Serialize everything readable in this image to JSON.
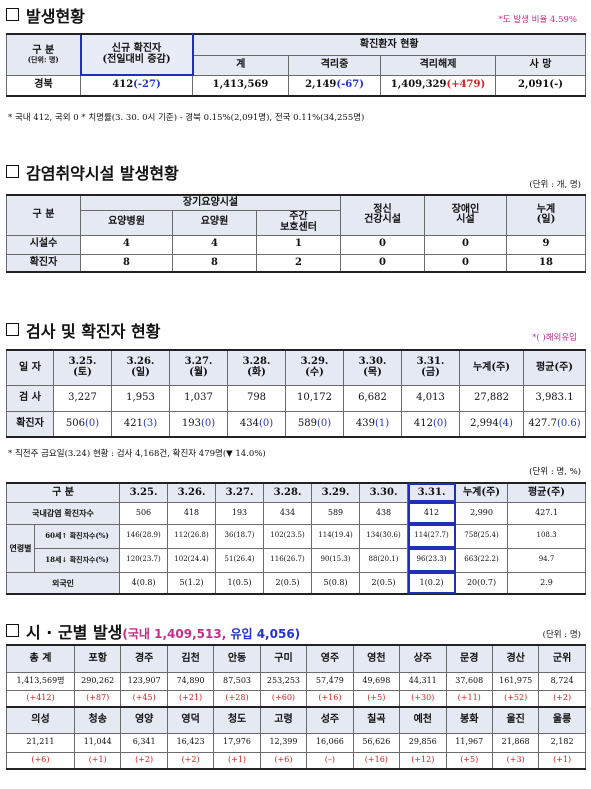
{
  "s1": {
    "title": "발생현황",
    "rate_note": "*도 발생 비율 4.59%",
    "h_gubun": "구 분",
    "h_unit": "(단위: 명)",
    "h_new1": "신규 확진자",
    "h_new2": "(전일대비 증감)",
    "h_group": "확진환자 현황",
    "h_cols": [
      "계",
      "격리중",
      "격리해제",
      "사 망"
    ],
    "row_label": "경북",
    "new_val": "412",
    "new_diff": "(-27)",
    "total": "1,413,569",
    "isolating": "2,149",
    "isolating_diff": "(-67)",
    "released": "1,409,329",
    "released_diff": "(+479)",
    "deaths": "2,091",
    "deaths_diff": "(-)",
    "footnote": "* 국내 412, 국외 0   * 치명률(3. 30. 0시 기준) - 경북 0.15%(2,091명), 전국 0.11%(34,255명)"
  },
  "s2": {
    "title": "감염취약시설 발생현황",
    "unit": "(단위 : 개, 명)",
    "h_gubun": "구 분",
    "h_group": "장기요양시설",
    "h_cols": [
      "요양병원",
      "요양원"
    ],
    "h_daycare1": "주간",
    "h_daycare2": "보호센터",
    "h_mental1": "정신",
    "h_mental2": "건강시설",
    "h_disabled1": "장애인",
    "h_disabled2": "시설",
    "h_cum1": "누계",
    "h_cum2": "(일)",
    "rows": [
      {
        "label": "시설수",
        "v": [
          "4",
          "4",
          "1",
          "0",
          "0",
          "9"
        ]
      },
      {
        "label": "확진자",
        "v": [
          "8",
          "8",
          "2",
          "0",
          "0",
          "18"
        ]
      }
    ]
  },
  "s3": {
    "title": "검사 및 확진자 현황",
    "overseas_note": "*(  )해외유입",
    "h_date": "일 자",
    "dates": [
      {
        "d": "3.25.",
        "w": "(토)"
      },
      {
        "d": "3.26.",
        "w": "(일)"
      },
      {
        "d": "3.27.",
        "w": "(월)"
      },
      {
        "d": "3.28.",
        "w": "(화)"
      },
      {
        "d": "3.29.",
        "w": "(수)"
      },
      {
        "d": "3.30.",
        "w": "(목)"
      },
      {
        "d": "3.31.",
        "w": "(금)"
      }
    ],
    "h_cum": "누계(주)",
    "h_avg": "평균(주)",
    "test_label": "검 사",
    "tests": [
      "3,227",
      "1,953",
      "1,037",
      "798",
      "10,172",
      "6,682",
      "4,013",
      "27,882",
      "3,983.1"
    ],
    "case_label": "확진자",
    "cases": [
      {
        "v": "506",
        "o": "(0)"
      },
      {
        "v": "421",
        "o": "(3)"
      },
      {
        "v": "193",
        "o": "(0)"
      },
      {
        "v": "434",
        "o": "(0)"
      },
      {
        "v": "589",
        "o": "(0)"
      },
      {
        "v": "439",
        "o": "(1)"
      },
      {
        "v": "412",
        "o": "(0)"
      },
      {
        "v": "2,994",
        "o": "(4)"
      },
      {
        "v": "427.7",
        "o": "(0.6)"
      }
    ],
    "footnote": "* 직전주 금요일(3.24) 현황 : 검사 4,168건, 확진자 479명(▼ 14.0%)"
  },
  "s4": {
    "unit": "(단위 : 명, %)",
    "h_gubun": "구 분",
    "dates": [
      "3.25.",
      "3.26.",
      "3.27.",
      "3.28.",
      "3.29.",
      "3.30.",
      "3.31."
    ],
    "h_cum": "누계(주)",
    "h_avg": "평균(주)",
    "r1_label": "국내감염 확진자수",
    "r1": [
      "506",
      "418",
      "193",
      "434",
      "589",
      "438",
      "412",
      "2,990",
      "427.1"
    ],
    "age_label": "연령별",
    "r2_label": "60세↑ 확진자수(%)",
    "r2": [
      "146(28.9)",
      "112(26.8)",
      "36(18.7)",
      "102(23.5)",
      "114(19.4)",
      "134(30.6)",
      "114(27.7)",
      "758(25.4)",
      "108.3"
    ],
    "r3_label": "18세↓ 확진자수(%)",
    "r3": [
      "120(23.7)",
      "102(24.4)",
      "51(26.4)",
      "116(26.7)",
      "90(15.3)",
      "88(20.1)",
      "96(23.3)",
      "663(22.2)",
      "94.7"
    ],
    "r4_label": "외국인",
    "r4": [
      "4(0.8)",
      "5(1.2)",
      "1(0.5)",
      "2(0.5)",
      "5(0.8)",
      "2(0.5)",
      "1(0.2)",
      "20(0.7)",
      "2.9"
    ]
  },
  "s5": {
    "title": "시 · 군별 발생",
    "domestic": "(국내 1,409,513,",
    "imported": "유입 4,056)",
    "unit": "(단위 : 명)",
    "row1": {
      "h": [
        "총 계",
        "포항",
        "경주",
        "김천",
        "안동",
        "구미",
        "영주",
        "영천",
        "상주",
        "문경",
        "경산",
        "군위"
      ],
      "v": [
        "1,413,569명",
        "290,262",
        "123,907",
        "74,890",
        "87,503",
        "253,253",
        "57,479",
        "49,698",
        "44,311",
        "37,608",
        "161,975",
        "8,724"
      ],
      "d": [
        "(+412)",
        "(+87)",
        "(+45)",
        "(+21)",
        "(+28)",
        "(+60)",
        "(+16)",
        "(+5)",
        "(+30)",
        "(+11)",
        "(+52)",
        "(+2)"
      ]
    },
    "row2": {
      "h": [
        "의성",
        "청송",
        "영양",
        "영덕",
        "청도",
        "고령",
        "성주",
        "칠곡",
        "예천",
        "봉화",
        "울진",
        "울릉"
      ],
      "v": [
        "21,211",
        "11,044",
        "6,341",
        "16,423",
        "17,976",
        "12,399",
        "16,066",
        "56,626",
        "29,856",
        "11,967",
        "21,868",
        "2,182"
      ],
      "d": [
        "(+6)",
        "(+1)",
        "(+2)",
        "(+2)",
        "(+1)",
        "(+6)",
        "(–)",
        "(+16)",
        "(+12)",
        "(+5)",
        "(+3)",
        "(+1)"
      ]
    }
  }
}
